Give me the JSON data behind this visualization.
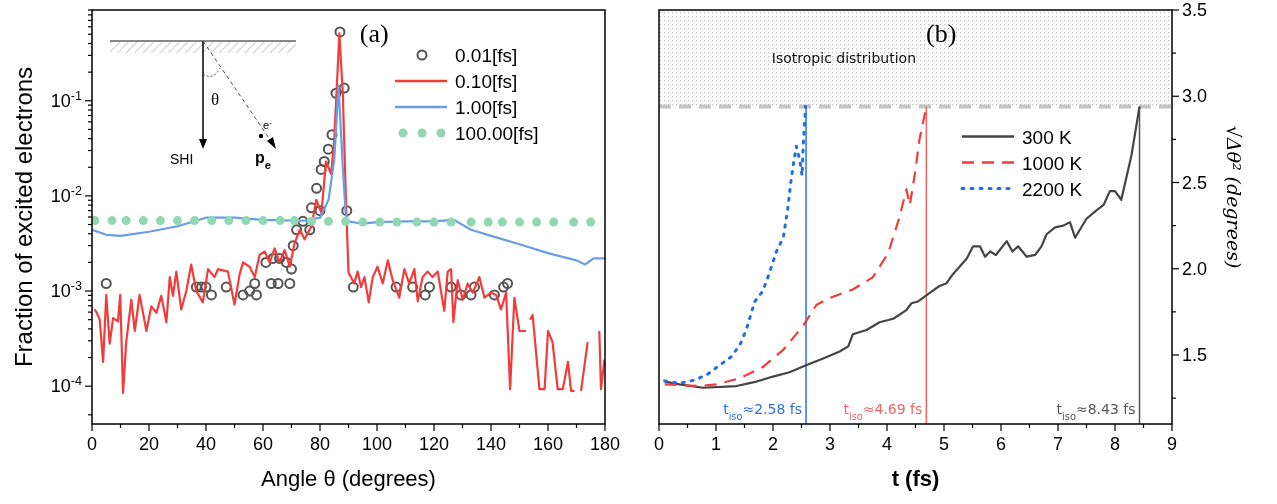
{
  "chart_data": [
    {
      "type": "line",
      "title": "(a)",
      "xlabel": "Angle θ (degrees)",
      "ylabel": "Fraction of excited electrons",
      "log": "y",
      "legend": "top right",
      "xlim": [
        0,
        180
      ],
      "xticks": [
        0,
        {
          "value": 10,
          "label": null
        },
        20,
        {
          "value": 30,
          "label": null
        },
        40,
        {
          "value": 50,
          "label": null
        },
        60,
        {
          "value": 70,
          "label": null
        },
        80,
        {
          "value": 90,
          "label": null
        },
        100,
        {
          "value": 110,
          "label": null
        },
        120,
        {
          "value": 130,
          "label": null
        },
        140,
        {
          "value": 150,
          "label": null
        },
        160,
        {
          "value": 170,
          "label": null
        },
        180
      ],
      "ylim": [
        4e-05,
        0.9
      ],
      "yticks": [
        {
          "value": 5e-05,
          "label": null
        },
        {
          "value": 0.0001,
          "label": "10$^{-4}$"
        },
        {
          "value": 0.0002,
          "label": null
        },
        {
          "value": 0.0003,
          "label": null
        },
        {
          "value": 0.0004,
          "label": null
        },
        {
          "value": 0.0005,
          "label": null
        },
        {
          "value": 0.0006,
          "label": null
        },
        {
          "value": 0.0007,
          "label": null
        },
        {
          "value": 0.0008,
          "label": null
        },
        {
          "value": 0.0009,
          "label": null
        },
        {
          "value": 0.001,
          "label": "10$^{-3}$"
        },
        {
          "value": 0.002,
          "label": null
        },
        {
          "value": 0.003,
          "label": null
        },
        {
          "value": 0.004,
          "label": null
        },
        {
          "value": 0.005,
          "label": null
        },
        {
          "value": 0.006,
          "label": null
        },
        {
          "value": 0.007,
          "label": null
        },
        {
          "value": 0.008,
          "label": null
        },
        {
          "value": 0.009,
          "label": null
        },
        {
          "value": 0.01,
          "label": "10$^{-2}$"
        },
        {
          "value": 0.02,
          "label": null
        },
        {
          "value": 0.03,
          "label": null
        },
        {
          "value": 0.04,
          "label": null
        },
        {
          "value": 0.05,
          "label": null
        },
        {
          "value": 0.06,
          "label": null
        },
        {
          "value": 0.07,
          "label": null
        },
        {
          "value": 0.08,
          "label": null
        },
        {
          "value": 0.09,
          "label": null
        },
        {
          "value": 0.1,
          "label": "10$^{-1}$"
        },
        {
          "value": 0.2,
          "label": null
        },
        {
          "value": 0.3,
          "label": null
        },
        {
          "value": 0.4,
          "label": null
        },
        {
          "value": 0.5,
          "label": null
        },
        {
          "value": 0.6,
          "label": null
        },
        {
          "value": 0.7,
          "label": null
        },
        {
          "value": 0.8,
          "label": null
        },
        {
          "value": 0.9,
          "label": null
        }
      ],
      "annotations": [
        "SHI",
        "θ",
        "e$^{-}$",
        "p$_{e}$"
      ],
      "series": [
        {
          "name": "0.01[fs]",
          "type": "scatter",
          "marker": "circle-open",
          "color": "#555555",
          "x": [
            5,
            36.6,
            38.4,
            40,
            41.9,
            47.1,
            53,
            55.3,
            57.1,
            57.7,
            61,
            62.9,
            63.5,
            65.3,
            65.8,
            68.2,
            69.4,
            70,
            70.6,
            71.8,
            74,
            76.4,
            77,
            78.8,
            80,
            80.4,
            81.5,
            82.9,
            84.2,
            85.6,
            87,
            88.5,
            89.4,
            91.7,
            106.7,
            112.5,
            116.9,
            118.4,
            126,
            129.5,
            133,
            134.2,
            141.2,
            144.4,
            145.8
          ],
          "values": [
            0.0012,
            0.0011,
            0.0011,
            0.0011,
            0.00091,
            0.0011,
            0.00091,
            0.001,
            0.0012,
            0.00091,
            0.002,
            0.0012,
            0.0022,
            0.0012,
            0.0022,
            0.002,
            0.0012,
            0.0017,
            0.003,
            0.0044,
            0.0054,
            0.0044,
            0.0075,
            0.012,
            0.007,
            0.019,
            0.023,
            0.031,
            0.044,
            0.12,
            0.53,
            0.136,
            0.007,
            0.0011,
            0.0011,
            0.0011,
            0.00091,
            0.0011,
            0.0011,
            0.00091,
            0.00091,
            0.0011,
            0.00091,
            0.0011,
            0.0012
          ]
        },
        {
          "name": "0.10[fs]",
          "type": "line",
          "line_style": "solid",
          "color": "#f23c3c",
          "x": [
            0.9,
            1.7,
            2.7,
            3.9,
            5,
            6.2,
            7.4,
            9.1,
            9.9,
            10.9,
            12,
            13.8,
            15,
            16.7,
            19.1,
            20.8,
            22.6,
            24.3,
            26.1,
            27.3,
            28.4,
            29.6,
            31.3,
            33.1,
            34.8,
            36.6,
            38.9,
            40.7,
            43,
            44.2,
            47.7,
            50,
            51.8,
            53,
            55.3,
            57.1,
            58.8,
            60.6,
            62.3,
            64.1,
            65.8,
            67.6,
            69.4,
            71.1,
            72.9,
            74.6,
            77,
            78.7,
            80.5,
            82.1,
            83.9,
            85,
            86.8,
            88,
            89.1,
            90,
            90.9,
            92,
            93.2,
            94.4,
            95.6,
            97.1,
            98.5,
            100.2,
            102,
            103.8,
            105.5,
            107.8,
            109.6,
            111.3,
            113.1,
            114.3,
            116,
            117.8,
            119.5,
            121.3,
            123.6,
            124.8,
            126,
            126.8,
            128.3,
            130.1,
            131.8,
            133.6,
            135.9,
            137.7,
            140,
            141.8,
            143.5,
            145.3,
            146.7,
            148.2,
            150,
            152.3,
            153,
            153.7,
            154.6,
            157,
            158.8,
            160,
            161.6,
            163.4,
            165.2,
            167,
            168.1,
            169.3,
            170.5,
            171.6,
            173.9,
            175.5,
            178,
            178.6,
            179.8
          ],
          "values": [
            0.00064,
            0.00059,
            0.0005,
            0.00018,
            0.00091,
            0.00028,
            0.00052,
            0.00048,
            0.00091,
            8.5e-05,
            0.00029,
            0.00081,
            0.00038,
            0.00091,
            0.00038,
            0.00069,
            0.00059,
            0.00089,
            0.00047,
            0.0014,
            0.00089,
            0.0016,
            0.00064,
            0.001,
            0.0019,
            0.001,
            0.00076,
            0.0017,
            0.0014,
            0.0017,
            0.0016,
            0.00072,
            0.0015,
            0.002,
            0.0018,
            0.0014,
            0.0024,
            0.0026,
            0.002,
            0.0028,
            0.002,
            0.0027,
            0.0018,
            0.0032,
            0.0044,
            0.0035,
            0.0048,
            0.0091,
            0.0066,
            0.023,
            0.017,
            0.039,
            0.51,
            0.12,
            0.009,
            0.00155,
            0.0014,
            0.0012,
            0.0016,
            0.0011,
            0.0014,
            0.00076,
            0.0014,
            0.0018,
            0.0012,
            0.0021,
            0.0013,
            0.00085,
            0.0017,
            0.0012,
            0.0017,
            0.00078,
            0.0014,
            0.0016,
            0.0014,
            0.0016,
            0.00062,
            0.0016,
            0.0017,
            0.00047,
            0.0013,
            0.00081,
            0.0012,
            0.00096,
            0.0014,
            0.00085,
            0.00096,
            0.00091,
            0.00064,
            0.00096,
            9.3e-05,
            0.00085,
            0.00038,
            0.00038,
            null,
            0.0005,
            0.00056,
            9.3e-05,
            9.3e-05,
            0.00038,
            0.00029,
            9.3e-05,
            9.3e-05,
            0.00018,
            8.9e-05,
            8.9e-05,
            null,
            8.9e-05,
            0.00029,
            null,
            0.00038,
            9.3e-05,
            0.00019
          ]
        },
        {
          "name": "1.00[fs]",
          "type": "line",
          "line_style": "solid",
          "color": "#6a9de8",
          "x": [
            0,
            5,
            10,
            20,
            30,
            40,
            50,
            60,
            70,
            75,
            80,
            83,
            85,
            86.5,
            88,
            89,
            90,
            95,
            100,
            110,
            120,
            127,
            133,
            140,
            150,
            160,
            170,
            173,
            176,
            180
          ],
          "values": [
            0.0044,
            0.0039,
            0.0038,
            0.0042,
            0.0048,
            0.0059,
            0.0059,
            0.0056,
            0.0055,
            0.0055,
            0.0059,
            0.0091,
            0.024,
            0.145,
            0.02,
            0.0066,
            0.0054,
            0.0051,
            0.0053,
            0.0054,
            0.0054,
            0.0056,
            0.0044,
            0.0038,
            0.0031,
            0.0025,
            0.0021,
            0.0019,
            0.0022,
            0.0022
          ]
        },
        {
          "name": "100.00[fs]",
          "type": "scatter",
          "marker": "circle",
          "color": "#90d8b2",
          "x": [
            1,
            7,
            12,
            18,
            24,
            30,
            36,
            42,
            48,
            54,
            60,
            66,
            71,
            77,
            83,
            89,
            95,
            101,
            107,
            114,
            120,
            126,
            133,
            139,
            144,
            150,
            156,
            162,
            169,
            175
          ],
          "values": [
            0.0055,
            0.0055,
            0.0055,
            0.0055,
            0.0055,
            0.0055,
            0.0055,
            0.0055,
            0.0055,
            0.0055,
            0.0055,
            0.0055,
            0.0055,
            0.0054,
            0.0054,
            0.0054,
            0.0053,
            0.0053,
            0.0053,
            0.0053,
            0.0053,
            0.0053,
            0.0053,
            0.0053,
            0.0053,
            0.0053,
            0.0053,
            0.0053,
            0.0053,
            0.0053
          ]
        }
      ]
    },
    {
      "type": "line",
      "title": "(b)",
      "xlabel": "t (fs)",
      "y2label": "√Δθ² (degrees)",
      "legend": "top right",
      "xlim": [
        0,
        9
      ],
      "xticks": [
        0,
        {
          "value": 0.5,
          "label": null
        },
        1,
        {
          "value": 1.5,
          "label": null
        },
        2,
        {
          "value": 2.5,
          "label": null
        },
        3,
        {
          "value": 3.5,
          "label": null
        },
        4,
        {
          "value": 4.5,
          "label": null
        },
        5,
        {
          "value": 5.5,
          "label": null
        },
        6,
        {
          "value": 6.5,
          "label": null
        },
        7,
        {
          "value": 7.5,
          "label": null
        },
        8,
        {
          "value": 8.5,
          "label": null
        },
        9
      ],
      "y2lim": [
        1.1,
        3.5
      ],
      "y2ticks": [
        {
          "value": 1.25,
          "label": null
        },
        1.5,
        {
          "value": 1.75,
          "label": null
        },
        {
          "value": 2,
          "label": "2.0"
        },
        {
          "value": 2.25,
          "label": null
        },
        2.5,
        {
          "value": 2.75,
          "label": null
        },
        {
          "value": 3,
          "label": "3.0"
        },
        {
          "value": 3.25,
          "label": null
        },
        3.5
      ],
      "bands": [
        {
          "axis": "y2",
          "from": 2.94,
          "to": 3.5,
          "label": "Isotropic distribution",
          "color": "#bbbbbb"
        }
      ],
      "ref_lines": [
        {
          "axis": "y2",
          "value": 2.94,
          "label": null,
          "color": "#c4c4c4",
          "line_style": "dashed"
        },
        {
          "axis": "x",
          "value": 2.58,
          "label": "t$_{iso}$≈2.58 fs",
          "color": "#2a72e0"
        },
        {
          "axis": "x",
          "value": 4.69,
          "label": "t$_{iso}$≈4.69 fs",
          "color": "#f06464"
        },
        {
          "axis": "x",
          "value": 8.43,
          "label": "t$_{iso}$≈8.43 fs",
          "color": "#555555"
        }
      ],
      "series": [
        {
          "name": "300 K",
          "axis": "y2",
          "line_style": "solid",
          "color": "#444444",
          "x": [
            0.1,
            0.36,
            0.77,
            1.36,
            1.71,
            2.0,
            2.29,
            2.58,
            2.88,
            3.17,
            3.32,
            3.4,
            3.64,
            3.87,
            4.11,
            4.34,
            4.43,
            4.54,
            4.75,
            4.92,
            5.04,
            5.16,
            5.4,
            5.51,
            5.63,
            5.72,
            5.81,
            5.91,
            6.1,
            6.2,
            6.3,
            6.45,
            6.6,
            6.71,
            6.8,
            6.95,
            7.09,
            7.21,
            7.3,
            7.5,
            7.68,
            7.8,
            7.91,
            8.0,
            8.11,
            8.29,
            8.43
          ],
          "values": [
            1.346,
            1.33,
            1.31,
            1.32,
            1.346,
            1.375,
            1.4,
            1.44,
            1.48,
            1.52,
            1.55,
            1.62,
            1.645,
            1.69,
            1.71,
            1.76,
            1.8,
            1.81,
            1.86,
            1.9,
            1.915,
            1.97,
            2.06,
            2.13,
            2.13,
            2.07,
            2.1,
            2.08,
            2.16,
            2.1,
            2.13,
            2.07,
            2.08,
            2.13,
            2.2,
            2.24,
            2.25,
            2.27,
            2.18,
            2.29,
            2.34,
            2.37,
            2.45,
            2.45,
            2.4,
            2.66,
            2.94
          ]
        },
        {
          "name": "1000 K",
          "axis": "y2",
          "line_style": "dashed",
          "color": "#f03c3c",
          "x": [
            0.1,
            0.71,
            1.0,
            1.42,
            1.82,
            2.18,
            2.53,
            2.76,
            2.99,
            3.4,
            3.75,
            4.02,
            4.22,
            4.34,
            4.4,
            4.49,
            4.57,
            4.69
          ],
          "values": [
            1.33,
            1.32,
            1.33,
            1.365,
            1.43,
            1.53,
            1.67,
            1.79,
            1.83,
            1.88,
            1.95,
            2.09,
            2.3,
            2.46,
            2.37,
            2.55,
            2.75,
            2.94
          ]
        },
        {
          "name": "2200 K",
          "axis": "y2",
          "line_style": "dotted",
          "color": "#1f6fe0",
          "x": [
            0.1,
            0.36,
            0.63,
            0.86,
            1.06,
            1.27,
            1.42,
            1.53,
            1.68,
            1.82,
            1.91,
            2.06,
            2.18,
            2.26,
            2.32,
            2.36,
            2.41,
            2.47,
            2.51,
            2.53,
            2.56,
            2.57
          ],
          "values": [
            1.35,
            1.335,
            1.355,
            1.39,
            1.44,
            1.49,
            1.56,
            1.645,
            1.81,
            1.87,
            1.95,
            2.1,
            2.18,
            2.35,
            2.52,
            2.61,
            2.71,
            2.63,
            2.54,
            2.71,
            2.88,
            2.94
          ]
        }
      ]
    }
  ]
}
